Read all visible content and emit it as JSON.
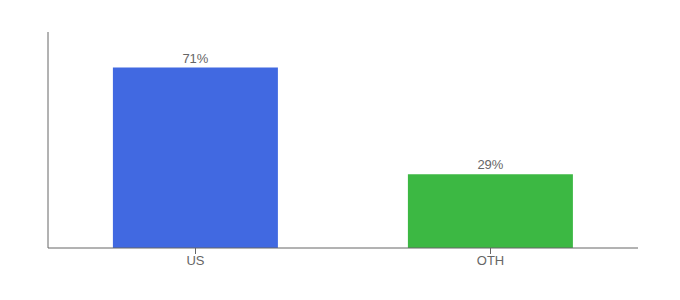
{
  "chart_data": {
    "type": "bar",
    "categories": [
      "US",
      "OTH"
    ],
    "values": [
      71,
      29
    ],
    "value_labels": [
      "71%",
      "29%"
    ],
    "colors": [
      "#4169E1",
      "#3CB843"
    ],
    "ylim": [
      0,
      85
    ],
    "data_labels": true,
    "tick_labels": "x"
  }
}
